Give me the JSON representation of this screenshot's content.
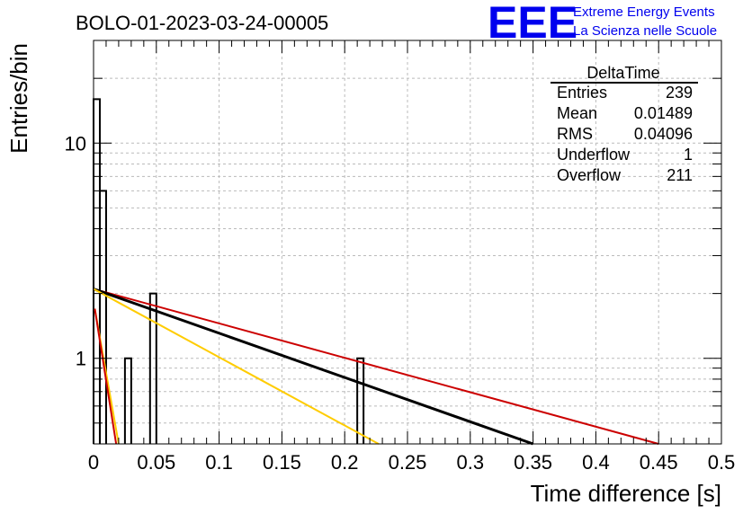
{
  "chart_data": {
    "type": "bar",
    "title": "BOLO-01-2023-03-24-00005",
    "xlabel": "Time difference [s]",
    "ylabel": "Entries/bin",
    "xlim": [
      0,
      0.5
    ],
    "ylim": [
      0.4,
      30
    ],
    "y_scale": "log",
    "grid": true,
    "x_ticks": [
      "0",
      "0.05",
      "0.1",
      "0.15",
      "0.2",
      "0.25",
      "0.3",
      "0.35",
      "0.4",
      "0.45",
      "0.5"
    ],
    "y_ticks": [
      "1",
      "10"
    ],
    "bin_width": 0.005,
    "bins": [
      {
        "x": 0.0,
        "value": 16
      },
      {
        "x": 0.005,
        "value": 6
      },
      {
        "x": 0.025,
        "value": 1
      },
      {
        "x": 0.045,
        "value": 2
      },
      {
        "x": 0.21,
        "value": 1
      }
    ],
    "lines": [
      {
        "color": "#cc0000",
        "points": [
          [
            0.0,
            2.1
          ],
          [
            0.45,
            0.4
          ]
        ]
      },
      {
        "color": "#000000",
        "points": [
          [
            0.0,
            2.1
          ],
          [
            0.35,
            0.4
          ]
        ]
      },
      {
        "color": "#ffcc00",
        "points": [
          [
            0.0,
            2.1
          ],
          [
            0.227,
            0.4
          ]
        ]
      },
      {
        "color": "#ffcc00",
        "points": [
          [
            0.001,
            1.7
          ],
          [
            0.02,
            0.4
          ]
        ]
      },
      {
        "color": "#cc0000",
        "points": [
          [
            0.001,
            1.7
          ],
          [
            0.018,
            0.4
          ]
        ]
      }
    ],
    "stats_box": {
      "title": "DeltaTime",
      "rows": [
        {
          "label": "Entries",
          "value": "239"
        },
        {
          "label": "Mean",
          "value": "0.01489"
        },
        {
          "label": "RMS",
          "value": "0.04096"
        },
        {
          "label": "Underflow",
          "value": "1"
        },
        {
          "label": "Overflow",
          "value": "211"
        }
      ]
    }
  },
  "logo": {
    "text": "EEE",
    "line1": "Extreme Energy Events",
    "line2": "La Scienza nelle Scuole",
    "color": "#0000ee"
  }
}
